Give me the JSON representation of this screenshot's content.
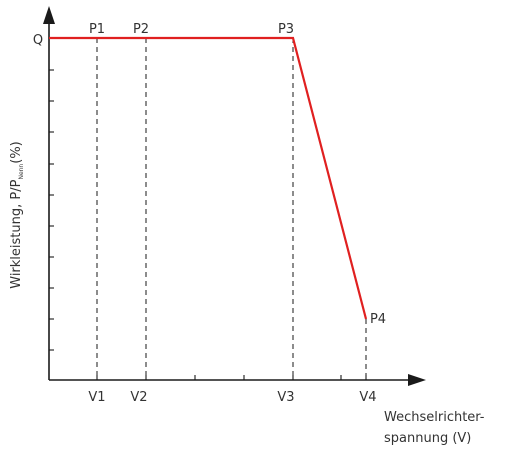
{
  "y_axis": {
    "label_main": "Wirkleistung, P/P",
    "label_sub": "Nenn",
    "label_suffix": "(%)",
    "level_label": "Q"
  },
  "x_axis": {
    "label_line1": "Wechselrichter-",
    "label_line2": "spannung (V)"
  },
  "points": {
    "p1": "P1",
    "p2": "P2",
    "p3": "P3",
    "p4": "P4"
  },
  "voltages": {
    "v1": "V1",
    "v2": "V2",
    "v3": "V3",
    "v4": "V4"
  },
  "colors": {
    "curve": "#e02020",
    "axis": "#1a1a1a"
  }
}
